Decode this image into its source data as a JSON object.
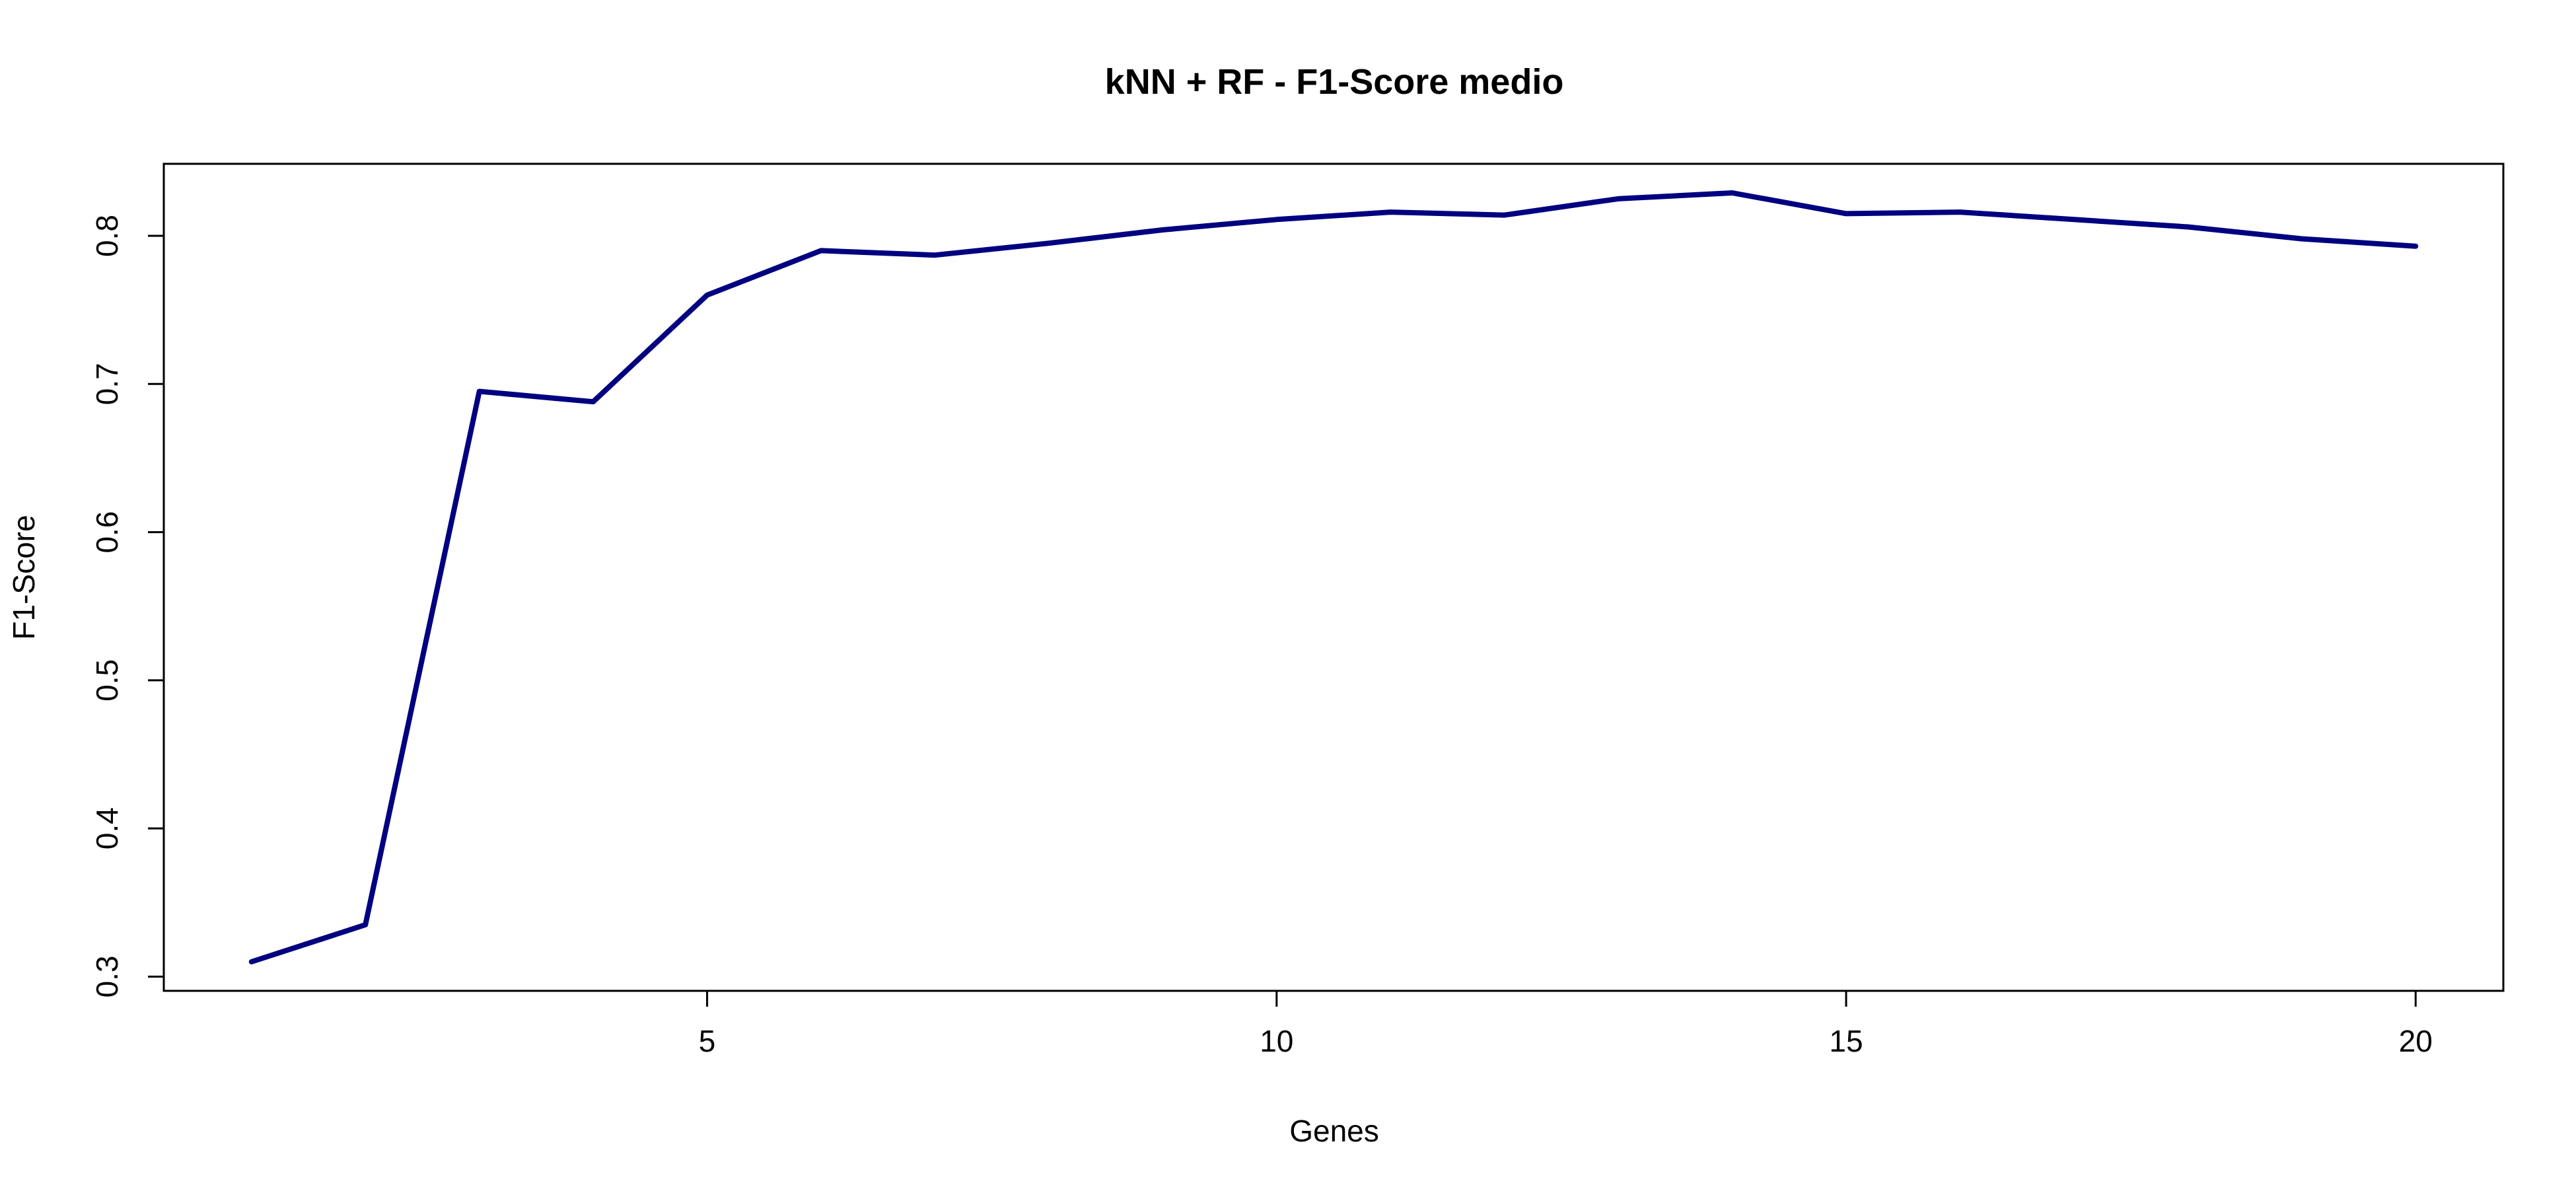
{
  "chart_data": {
    "type": "line",
    "title": "kNN + RF - F1-Score medio",
    "xlabel": "Genes",
    "ylabel": "F1-Score",
    "x": [
      1,
      2,
      3,
      4,
      5,
      6,
      7,
      8,
      9,
      10,
      11,
      12,
      13,
      14,
      15,
      16,
      17,
      18,
      19,
      20
    ],
    "series": [
      {
        "color": "#000080",
        "values": [
          0.31,
          0.335,
          0.695,
          0.688,
          0.76,
          0.79,
          0.787,
          0.795,
          0.804,
          0.811,
          0.816,
          0.814,
          0.825,
          0.829,
          0.815,
          0.816,
          0.811,
          0.806,
          0.798,
          0.793
        ]
      }
    ],
    "xlim": [
      0.23,
      20.77
    ],
    "ylim": [
      0.2904,
      0.8486
    ],
    "xticks": [
      5,
      10,
      15,
      20
    ],
    "xtick_labels": [
      "5",
      "10",
      "15",
      "20"
    ],
    "yticks": [
      0.3,
      0.4,
      0.5,
      0.6,
      0.7,
      0.8
    ],
    "ytick_labels": [
      "0.3",
      "0.4",
      "0.5",
      "0.6",
      "0.7",
      "0.8"
    ],
    "grid": false,
    "legend": "none"
  }
}
